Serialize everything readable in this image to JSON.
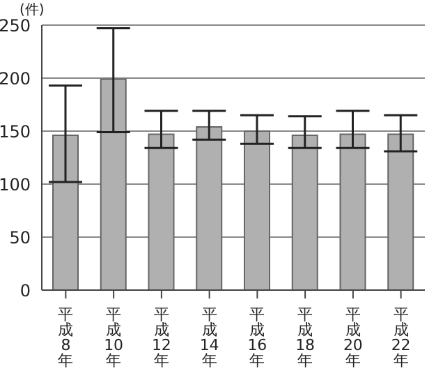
{
  "chart_data": {
    "type": "bar",
    "ylabel": "(件)",
    "categories": [
      "平成8年",
      "平成10年",
      "平成12年",
      "平成14年",
      "平成16年",
      "平成18年",
      "平成20年",
      "平成22年"
    ],
    "values": [
      146,
      199,
      147,
      154,
      150,
      146,
      147,
      147
    ],
    "errors": [
      [
        102,
        193
      ],
      [
        149,
        247
      ],
      [
        134,
        169
      ],
      [
        142,
        169
      ],
      [
        138,
        165
      ],
      [
        134,
        164
      ],
      [
        134,
        169
      ],
      [
        131,
        165
      ]
    ],
    "color": "#b0b0b0",
    "ylim": [
      0,
      250
    ],
    "yticks": [
      0,
      50,
      100,
      150,
      200,
      250
    ],
    "grid": "y"
  }
}
